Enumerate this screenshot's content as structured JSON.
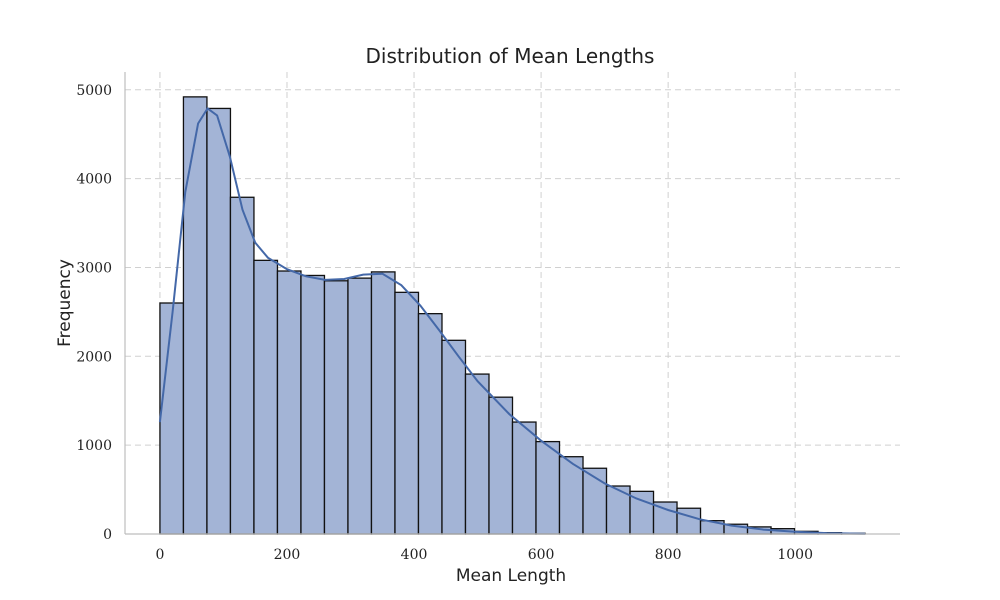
{
  "chart_data": {
    "type": "bar",
    "subtype": "histogram",
    "title": "Distribution of Mean Lengths",
    "xlabel": "Mean Length",
    "ylabel": "Frequency",
    "xlim": [
      -55,
      1165
    ],
    "ylim": [
      0,
      5200
    ],
    "xticks": [
      0,
      200,
      400,
      600,
      800,
      1000
    ],
    "yticks": [
      0,
      1000,
      2000,
      3000,
      4000,
      5000
    ],
    "grid": true,
    "bin_start": 0,
    "bin_width": 37,
    "values": [
      2600,
      4920,
      4790,
      3790,
      3080,
      2960,
      2910,
      2850,
      2880,
      2950,
      2720,
      2480,
      2180,
      1800,
      1540,
      1260,
      1040,
      870,
      740,
      540,
      480,
      360,
      290,
      150,
      110,
      80,
      60,
      30,
      15,
      8
    ],
    "kde": {
      "x": [
        0,
        20,
        40,
        60,
        75,
        90,
        110,
        130,
        150,
        170,
        200,
        230,
        260,
        290,
        320,
        350,
        380,
        410,
        440,
        470,
        500,
        550,
        600,
        650,
        700,
        750,
        800,
        850,
        900,
        950,
        1000,
        1050,
        1110
      ],
      "y": [
        1260,
        2500,
        3850,
        4620,
        4790,
        4710,
        4250,
        3650,
        3280,
        3110,
        2980,
        2900,
        2860,
        2870,
        2920,
        2930,
        2800,
        2570,
        2290,
        2000,
        1720,
        1350,
        1050,
        790,
        570,
        400,
        270,
        165,
        95,
        50,
        25,
        10,
        3
      ]
    },
    "colors": {
      "bar": "#a3b4d6",
      "edge": "#111111",
      "kde": "#4468a8"
    }
  }
}
